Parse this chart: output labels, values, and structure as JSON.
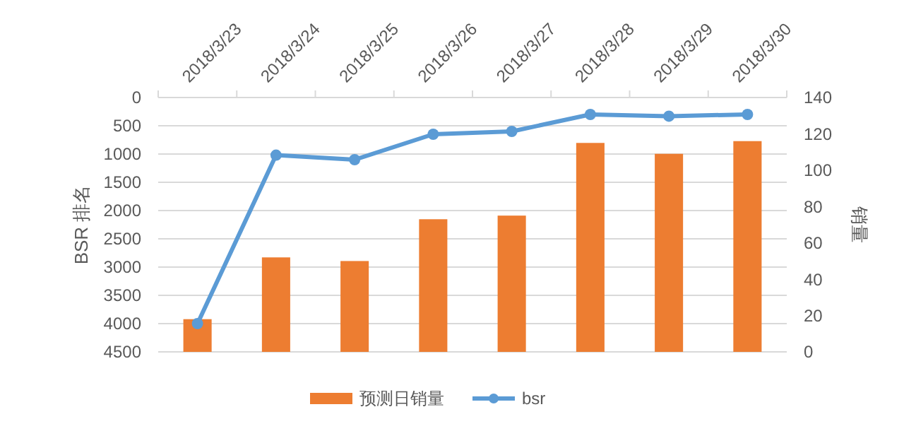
{
  "chart_data": {
    "type": "bar",
    "ylabel": "BSR 排名",
    "y2label": "销量",
    "categories": [
      "2018/3/23",
      "2018/3/24",
      "2018/3/25",
      "2018/3/26",
      "2018/3/27",
      "2018/3/28",
      "2018/3/29",
      "2018/3/30"
    ],
    "series": [
      {
        "name": "预测日销量",
        "axis": "y2",
        "color": "#ed7d31",
        "values": [
          18,
          52,
          50,
          73,
          75,
          115,
          109,
          116
        ]
      },
      {
        "name": "bsr",
        "type": "line",
        "axis": "y",
        "color": "#5b9bd5",
        "values": [
          4000,
          1020,
          1100,
          650,
          600,
          300,
          330,
          300
        ]
      }
    ],
    "ylim": [
      4500,
      0
    ],
    "yticks": [
      0,
      500,
      1000,
      1500,
      2000,
      2500,
      3000,
      3500,
      4000,
      4500
    ],
    "y2lim": [
      0,
      140
    ],
    "y2ticks": [
      0,
      20,
      40,
      60,
      80,
      100,
      120,
      140
    ],
    "grid": "y",
    "legend": "bottom",
    "marker": "circle",
    "line_style": "solid"
  }
}
